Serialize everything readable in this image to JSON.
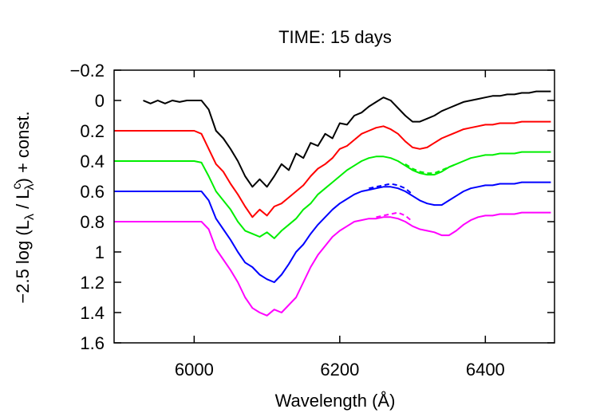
{
  "chart_data": {
    "type": "line",
    "title": "TIME: 15 days",
    "xlabel": "Wavelength (Å)",
    "ylabel": {
      "prefix": "−2.5 log (L",
      "sub1": "λ",
      "mid": " / L",
      "sup": "c",
      "sub2": "λ",
      "suffix": ") + const."
    },
    "xlim": [
      5890,
      6495
    ],
    "xticks": [
      6000,
      6200,
      6400
    ],
    "ylim": [
      -0.2,
      1.6
    ],
    "y_inverted": true,
    "yticks": [
      {
        "value": -0.2,
        "label": "−0.2"
      },
      0,
      0.2,
      0.4,
      0.6,
      0.8,
      1,
      1.2,
      1.4,
      1.6
    ],
    "x": [
      5890,
      5900,
      5910,
      5920,
      5930,
      5940,
      5950,
      5960,
      5970,
      5980,
      5990,
      6000,
      6010,
      6020,
      6030,
      6040,
      6050,
      6060,
      6070,
      6080,
      6090,
      6100,
      6110,
      6120,
      6130,
      6140,
      6150,
      6160,
      6170,
      6180,
      6190,
      6200,
      6210,
      6220,
      6230,
      6240,
      6250,
      6260,
      6270,
      6280,
      6290,
      6300,
      6310,
      6320,
      6330,
      6340,
      6350,
      6360,
      6370,
      6380,
      6390,
      6400,
      6410,
      6420,
      6430,
      6440,
      6450,
      6460,
      6470,
      6480,
      6490
    ],
    "series": [
      {
        "color": "#000000",
        "dashed": false,
        "values": [
          null,
          null,
          null,
          null,
          0.0,
          0.02,
          0.0,
          0.02,
          0.0,
          0.01,
          0.0,
          0.0,
          0.0,
          0.06,
          0.2,
          0.25,
          0.32,
          0.4,
          0.5,
          0.57,
          0.52,
          0.57,
          0.5,
          0.42,
          0.46,
          0.35,
          0.38,
          0.28,
          0.3,
          0.22,
          0.25,
          0.15,
          0.16,
          0.1,
          0.08,
          0.04,
          0.01,
          -0.02,
          0.0,
          0.05,
          0.1,
          0.14,
          0.14,
          0.12,
          0.1,
          0.07,
          0.05,
          0.03,
          0.01,
          0.0,
          -0.01,
          -0.02,
          -0.03,
          -0.03,
          -0.04,
          -0.04,
          -0.05,
          -0.05,
          -0.06,
          -0.06,
          -0.06
        ]
      },
      {
        "color": "#ff0000",
        "dashed": false,
        "values": [
          0.2,
          0.2,
          0.2,
          0.2,
          0.2,
          0.2,
          0.2,
          0.2,
          0.2,
          0.2,
          0.2,
          0.2,
          0.22,
          0.32,
          0.42,
          0.47,
          0.55,
          0.62,
          0.7,
          0.77,
          0.72,
          0.76,
          0.7,
          0.68,
          0.64,
          0.6,
          0.56,
          0.5,
          0.45,
          0.42,
          0.38,
          0.32,
          0.3,
          0.26,
          0.22,
          0.2,
          0.18,
          0.17,
          0.19,
          0.22,
          0.27,
          0.31,
          0.32,
          0.31,
          0.28,
          0.25,
          0.23,
          0.21,
          0.19,
          0.18,
          0.17,
          0.16,
          0.16,
          0.15,
          0.15,
          0.15,
          0.14,
          0.14,
          0.14,
          0.14,
          0.14
        ]
      },
      {
        "color": "#00ee00",
        "dashed": false,
        "values": [
          0.4,
          0.4,
          0.4,
          0.4,
          0.4,
          0.4,
          0.4,
          0.4,
          0.4,
          0.4,
          0.4,
          0.4,
          0.41,
          0.5,
          0.6,
          0.66,
          0.72,
          0.8,
          0.86,
          0.88,
          0.9,
          0.87,
          0.91,
          0.86,
          0.82,
          0.78,
          0.72,
          0.68,
          0.62,
          0.58,
          0.54,
          0.5,
          0.46,
          0.43,
          0.4,
          0.38,
          0.37,
          0.37,
          0.38,
          0.4,
          0.43,
          0.46,
          0.48,
          0.49,
          0.49,
          0.47,
          0.44,
          0.42,
          0.4,
          0.38,
          0.37,
          0.36,
          0.36,
          0.35,
          0.35,
          0.35,
          0.34,
          0.34,
          0.34,
          0.34,
          0.34
        ]
      },
      {
        "color": "#00ee00",
        "dashed": true,
        "values": [
          null,
          null,
          null,
          null,
          null,
          null,
          null,
          null,
          null,
          null,
          null,
          null,
          null,
          null,
          null,
          null,
          null,
          null,
          null,
          null,
          null,
          null,
          null,
          null,
          null,
          null,
          null,
          null,
          null,
          null,
          null,
          null,
          null,
          null,
          null,
          null,
          null,
          null,
          null,
          null,
          0.42,
          0.45,
          0.47,
          0.48,
          0.48,
          0.46,
          0.44,
          0.42,
          null,
          null,
          null,
          null,
          null,
          null,
          null,
          null,
          null,
          null,
          null,
          null,
          null
        ]
      },
      {
        "color": "#0000ff",
        "dashed": false,
        "values": [
          0.6,
          0.6,
          0.6,
          0.6,
          0.6,
          0.6,
          0.6,
          0.6,
          0.6,
          0.6,
          0.6,
          0.6,
          0.6,
          0.66,
          0.78,
          0.85,
          0.92,
          1.0,
          1.07,
          1.1,
          1.15,
          1.18,
          1.2,
          1.15,
          1.08,
          1.0,
          0.95,
          0.88,
          0.82,
          0.77,
          0.72,
          0.68,
          0.65,
          0.62,
          0.6,
          0.59,
          0.58,
          0.57,
          0.57,
          0.58,
          0.6,
          0.63,
          0.66,
          0.68,
          0.69,
          0.69,
          0.66,
          0.63,
          0.6,
          0.58,
          0.57,
          0.56,
          0.56,
          0.55,
          0.55,
          0.55,
          0.54,
          0.54,
          0.54,
          0.54,
          0.54
        ]
      },
      {
        "color": "#0000ff",
        "dashed": true,
        "values": [
          null,
          null,
          null,
          null,
          null,
          null,
          null,
          null,
          null,
          null,
          null,
          null,
          null,
          null,
          null,
          null,
          null,
          null,
          null,
          null,
          null,
          null,
          null,
          null,
          null,
          null,
          null,
          null,
          null,
          null,
          null,
          null,
          null,
          null,
          null,
          0.58,
          0.57,
          0.56,
          0.55,
          0.56,
          0.58,
          0.62,
          null,
          null,
          null,
          null,
          null,
          null,
          null,
          null,
          null,
          null,
          null,
          null,
          null,
          null,
          null,
          null,
          null,
          null,
          null
        ]
      },
      {
        "color": "#ff00ff",
        "dashed": false,
        "values": [
          0.8,
          0.8,
          0.8,
          0.8,
          0.8,
          0.8,
          0.8,
          0.8,
          0.8,
          0.8,
          0.8,
          0.8,
          0.8,
          0.85,
          0.98,
          1.05,
          1.12,
          1.2,
          1.3,
          1.37,
          1.4,
          1.42,
          1.38,
          1.4,
          1.35,
          1.3,
          1.2,
          1.1,
          1.02,
          0.96,
          0.9,
          0.86,
          0.83,
          0.8,
          0.79,
          0.78,
          0.78,
          0.77,
          0.77,
          0.78,
          0.8,
          0.83,
          0.85,
          0.86,
          0.87,
          0.89,
          0.89,
          0.86,
          0.82,
          0.79,
          0.77,
          0.76,
          0.76,
          0.75,
          0.75,
          0.75,
          0.74,
          0.74,
          0.74,
          0.74,
          0.74
        ]
      },
      {
        "color": "#ff00ff",
        "dashed": true,
        "values": [
          null,
          null,
          null,
          null,
          null,
          null,
          null,
          null,
          null,
          null,
          null,
          null,
          null,
          null,
          null,
          null,
          null,
          null,
          null,
          null,
          null,
          null,
          null,
          null,
          null,
          null,
          null,
          null,
          null,
          null,
          null,
          null,
          null,
          null,
          null,
          null,
          0.77,
          0.76,
          0.75,
          0.74,
          0.76,
          0.8,
          null,
          null,
          null,
          null,
          null,
          null,
          null,
          null,
          null,
          null,
          null,
          null,
          null,
          null,
          null,
          null,
          null,
          null,
          null
        ]
      }
    ]
  }
}
